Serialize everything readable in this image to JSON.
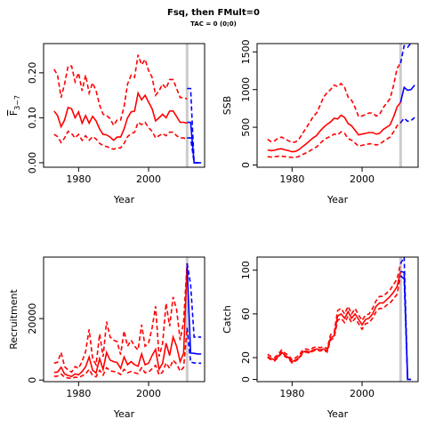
{
  "title": "Fsq, then FMult=0",
  "subtitle": "TAC = 0 (0;0)",
  "colors": {
    "history": "#ff0000",
    "projection": "#0000ff",
    "ref_line": "#cccccc"
  },
  "chart_data": [
    {
      "type": "line",
      "id": "fbar",
      "xlabel": "Year",
      "ylabel_base": "F",
      "ylabel_sub": "3−7",
      "xlim": [
        1970,
        2016
      ],
      "ylim": [
        -0.01,
        0.265
      ],
      "xticks": [
        1980,
        2000
      ],
      "yticks": [
        0.0,
        0.1,
        0.2
      ],
      "ytick_labels": [
        "0.00",
        "0.10",
        "0.20"
      ],
      "ref_year": 2011,
      "history": {
        "x": [
          1973,
          1974,
          1975,
          1976,
          1977,
          1978,
          1979,
          1980,
          1981,
          1982,
          1983,
          1984,
          1985,
          1986,
          1987,
          1988,
          1989,
          1990,
          1991,
          1992,
          1993,
          1994,
          1995,
          1996,
          1997,
          1998,
          1999,
          2000,
          2001,
          2002,
          2003,
          2004,
          2005,
          2006,
          2007,
          2008,
          2009,
          2010,
          2011
        ],
        "mid": [
          0.115,
          0.105,
          0.08,
          0.095,
          0.123,
          0.12,
          0.1,
          0.113,
          0.088,
          0.105,
          0.088,
          0.103,
          0.093,
          0.075,
          0.063,
          0.062,
          0.057,
          0.05,
          0.057,
          0.057,
          0.075,
          0.1,
          0.113,
          0.115,
          0.155,
          0.14,
          0.15,
          0.135,
          0.12,
          0.093,
          0.1,
          0.108,
          0.1,
          0.115,
          0.115,
          0.103,
          0.09,
          0.09,
          0.088
        ],
        "lo": [
          0.063,
          0.058,
          0.045,
          0.055,
          0.07,
          0.065,
          0.055,
          0.063,
          0.05,
          0.06,
          0.05,
          0.058,
          0.053,
          0.043,
          0.038,
          0.036,
          0.033,
          0.03,
          0.033,
          0.033,
          0.043,
          0.058,
          0.065,
          0.068,
          0.09,
          0.085,
          0.09,
          0.078,
          0.07,
          0.055,
          0.06,
          0.065,
          0.06,
          0.068,
          0.068,
          0.06,
          0.055,
          0.055,
          0.052
        ],
        "hi": [
          0.208,
          0.195,
          0.145,
          0.175,
          0.215,
          0.215,
          0.18,
          0.2,
          0.16,
          0.195,
          0.155,
          0.178,
          0.16,
          0.128,
          0.108,
          0.105,
          0.098,
          0.083,
          0.095,
          0.095,
          0.125,
          0.175,
          0.195,
          0.19,
          0.24,
          0.218,
          0.23,
          0.205,
          0.19,
          0.15,
          0.16,
          0.175,
          0.165,
          0.185,
          0.185,
          0.165,
          0.145,
          0.145,
          0.142
        ]
      },
      "projection": {
        "x": [
          2011,
          2012,
          2013,
          2014,
          2015
        ],
        "mid": [
          0.09,
          0.09,
          0.0,
          0.0,
          0.0
        ],
        "lo": [
          0.055,
          0.055,
          0.0,
          0.0,
          0.0
        ],
        "hi": [
          0.165,
          0.165,
          0.0,
          0.0,
          0.0
        ]
      }
    },
    {
      "type": "line",
      "id": "ssb",
      "xlabel": "Year",
      "ylabel": "SSB",
      "xlim": [
        1970,
        2016
      ],
      "ylim": [
        -30,
        1610
      ],
      "xticks": [
        1980,
        2000
      ],
      "yticks": [
        0,
        500,
        1000,
        1500
      ],
      "ytick_labels": [
        "0",
        "500",
        "1000",
        "1500"
      ],
      "ref_year": 2011,
      "history": {
        "x": [
          1973,
          1974,
          1975,
          1976,
          1977,
          1978,
          1979,
          1980,
          1981,
          1982,
          1983,
          1984,
          1985,
          1986,
          1987,
          1988,
          1989,
          1990,
          1991,
          1992,
          1993,
          1994,
          1995,
          1996,
          1997,
          1998,
          1999,
          2000,
          2001,
          2002,
          2003,
          2004,
          2005,
          2006,
          2007,
          2008,
          2009,
          2010,
          2011
        ],
        "mid": [
          200,
          190,
          195,
          210,
          215,
          200,
          190,
          175,
          180,
          205,
          245,
          280,
          320,
          360,
          390,
          450,
          500,
          540,
          570,
          620,
          610,
          660,
          630,
          550,
          520,
          460,
          400,
          410,
          420,
          430,
          430,
          410,
          420,
          470,
          500,
          530,
          640,
          770,
          830
        ],
        "lo": [
          110,
          105,
          110,
          115,
          118,
          110,
          105,
          100,
          100,
          115,
          140,
          160,
          185,
          215,
          240,
          285,
          330,
          360,
          380,
          410,
          400,
          440,
          420,
          350,
          330,
          290,
          250,
          260,
          270,
          280,
          280,
          265,
          275,
          310,
          340,
          370,
          440,
          520,
          560
        ],
        "hi": [
          340,
          310,
          320,
          355,
          370,
          345,
          320,
          300,
          305,
          345,
          420,
          490,
          560,
          640,
          690,
          790,
          900,
          960,
          1000,
          1060,
          1040,
          1080,
          1030,
          900,
          860,
          760,
          640,
          650,
          670,
          690,
          690,
          650,
          670,
          760,
          820,
          880,
          1060,
          1280,
          1350
        ]
      },
      "projection": {
        "x": [
          2011,
          2012,
          2013,
          2014,
          2015
        ],
        "mid": [
          830,
          1030,
          990,
          1000,
          1060
        ],
        "lo": [
          560,
          620,
          580,
          590,
          630
        ],
        "hi": [
          1350,
          1580,
          1560,
          1620,
          1700
        ]
      }
    },
    {
      "type": "line",
      "id": "recruitment",
      "xlabel": "Year",
      "ylabel": "Recruitment",
      "xlim": [
        1970,
        2016
      ],
      "ylim": [
        -500,
        40000
      ],
      "xticks": [
        1980,
        2000
      ],
      "yticks": [
        0,
        20000
      ],
      "ytick_labels": [
        "0",
        "20000"
      ],
      "ref_year": 2011,
      "history": {
        "x": [
          1973,
          1974,
          1975,
          1976,
          1977,
          1978,
          1979,
          1980,
          1981,
          1982,
          1983,
          1984,
          1985,
          1986,
          1987,
          1988,
          1989,
          1990,
          1991,
          1992,
          1993,
          1994,
          1995,
          1996,
          1997,
          1998,
          1999,
          2000,
          2001,
          2002,
          2003,
          2004,
          2005,
          2006,
          2007,
          2008,
          2009,
          2010,
          2011
        ],
        "mid": [
          2500,
          2600,
          4200,
          2000,
          1500,
          1200,
          2000,
          1700,
          2800,
          4300,
          7500,
          3200,
          2300,
          7000,
          3500,
          9000,
          6500,
          6000,
          5700,
          3800,
          7500,
          5000,
          6000,
          5000,
          4500,
          8500,
          5000,
          5500,
          8000,
          10000,
          3500,
          5500,
          12000,
          8000,
          14000,
          11000,
          6000,
          8800,
          37000
        ],
        "lo": [
          1200,
          1300,
          2000,
          900,
          700,
          550,
          950,
          800,
          1400,
          2000,
          3500,
          1500,
          1100,
          3200,
          1600,
          4000,
          3000,
          2800,
          2600,
          1800,
          3500,
          2400,
          2800,
          2400,
          2100,
          4000,
          2400,
          2600,
          3700,
          4800,
          1700,
          2600,
          5600,
          3800,
          6500,
          5200,
          2900,
          4100,
          17000
        ],
        "hi": [
          5500,
          5800,
          9000,
          4400,
          3300,
          2600,
          4400,
          3800,
          6100,
          9200,
          16500,
          7000,
          5000,
          15000,
          7600,
          19000,
          14000,
          13000,
          12500,
          8300,
          16000,
          11000,
          13000,
          11000,
          9800,
          18000,
          11000,
          12000,
          17000,
          24000,
          7700,
          12000,
          25000,
          17500,
          27000,
          23000,
          13000,
          19000,
          38000
        ]
      },
      "projection": {
        "x": [
          2011,
          2012,
          2013,
          2014,
          2015
        ],
        "mid": [
          37000,
          8800,
          8700,
          8500,
          8500
        ],
        "lo": [
          17000,
          5800,
          5600,
          5500,
          5500
        ],
        "hi": [
          38000,
          31000,
          14000,
          14000,
          14000
        ]
      }
    },
    {
      "type": "line",
      "id": "catch",
      "xlabel": "Year",
      "ylabel": "Catch",
      "xlim": [
        1970,
        2016
      ],
      "ylim": [
        -2,
        112
      ],
      "xticks": [
        1980,
        2000
      ],
      "yticks": [
        0,
        20,
        60,
        100
      ],
      "ytick_labels": [
        "0",
        "20",
        "60",
        "100"
      ],
      "ref_year": 2011,
      "history": {
        "x": [
          1973,
          1974,
          1975,
          1976,
          1977,
          1978,
          1979,
          1980,
          1981,
          1982,
          1983,
          1984,
          1985,
          1986,
          1987,
          1988,
          1989,
          1990,
          1991,
          1992,
          1993,
          1994,
          1995,
          1996,
          1997,
          1998,
          1999,
          2000,
          2001,
          2002,
          2003,
          2004,
          2005,
          2006,
          2007,
          2008,
          2009,
          2010,
          2011
        ],
        "mid": [
          21,
          19,
          18,
          21,
          25,
          22,
          20,
          16,
          18,
          20,
          25,
          26,
          25,
          27,
          28,
          27,
          28,
          26,
          38,
          40,
          58,
          60,
          56,
          62,
          56,
          60,
          55,
          50,
          55,
          56,
          60,
          67,
          70,
          70,
          73,
          76,
          80,
          85,
          99
        ],
        "lo": [
          20,
          18,
          17,
          20,
          24,
          21,
          19,
          15,
          17,
          19,
          24,
          25,
          24,
          26,
          27,
          26,
          27,
          25,
          36,
          38,
          54,
          56,
          52,
          58,
          52,
          56,
          51,
          46,
          51,
          52,
          56,
          62,
          65,
          65,
          68,
          70,
          74,
          78,
          95
        ],
        "hi": [
          23,
          21,
          20,
          23,
          27,
          24,
          22,
          18,
          20,
          22,
          27,
          28,
          27,
          29,
          30,
          29,
          30,
          28,
          41,
          43,
          63,
          65,
          60,
          67,
          60,
          65,
          59,
          54,
          59,
          60,
          65,
          72,
          76,
          76,
          79,
          82,
          87,
          92,
          106
        ]
      },
      "projection": {
        "x": [
          2011,
          2012,
          2013,
          2014
        ],
        "mid": [
          99,
          98,
          0,
          0
        ],
        "lo": [
          95,
          92,
          0,
          0
        ],
        "hi": [
          106,
          112,
          0,
          0
        ]
      }
    }
  ]
}
